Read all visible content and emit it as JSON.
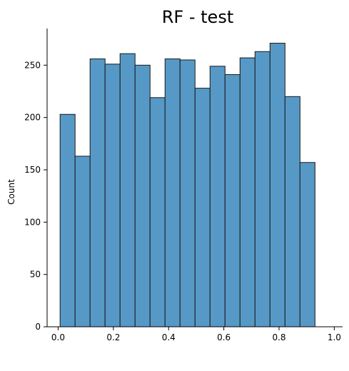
{
  "chart_data": {
    "type": "bar",
    "title": "RF - test",
    "xlabel": "",
    "ylabel": "Count",
    "xlim": [
      -0.04,
      1.03
    ],
    "ylim": [
      0,
      285
    ],
    "bin_start": 0.007,
    "bin_width": 0.0543,
    "values": [
      203,
      163,
      256,
      251,
      261,
      250,
      219,
      256,
      255,
      228,
      249,
      241,
      257,
      263,
      271,
      220,
      157
    ],
    "xticks": [
      0.0,
      0.2,
      0.4,
      0.6,
      0.8,
      1.0
    ],
    "xtick_labels": [
      "0.0",
      "0.2",
      "0.4",
      "0.6",
      "0.8",
      "1.0"
    ],
    "yticks": [
      0,
      50,
      100,
      150,
      200,
      250
    ],
    "ytick_labels": [
      "0",
      "50",
      "100",
      "150",
      "200",
      "250"
    ],
    "grid": false,
    "bar_color": "#5699c6",
    "edge_color": "#1a1a1a"
  }
}
